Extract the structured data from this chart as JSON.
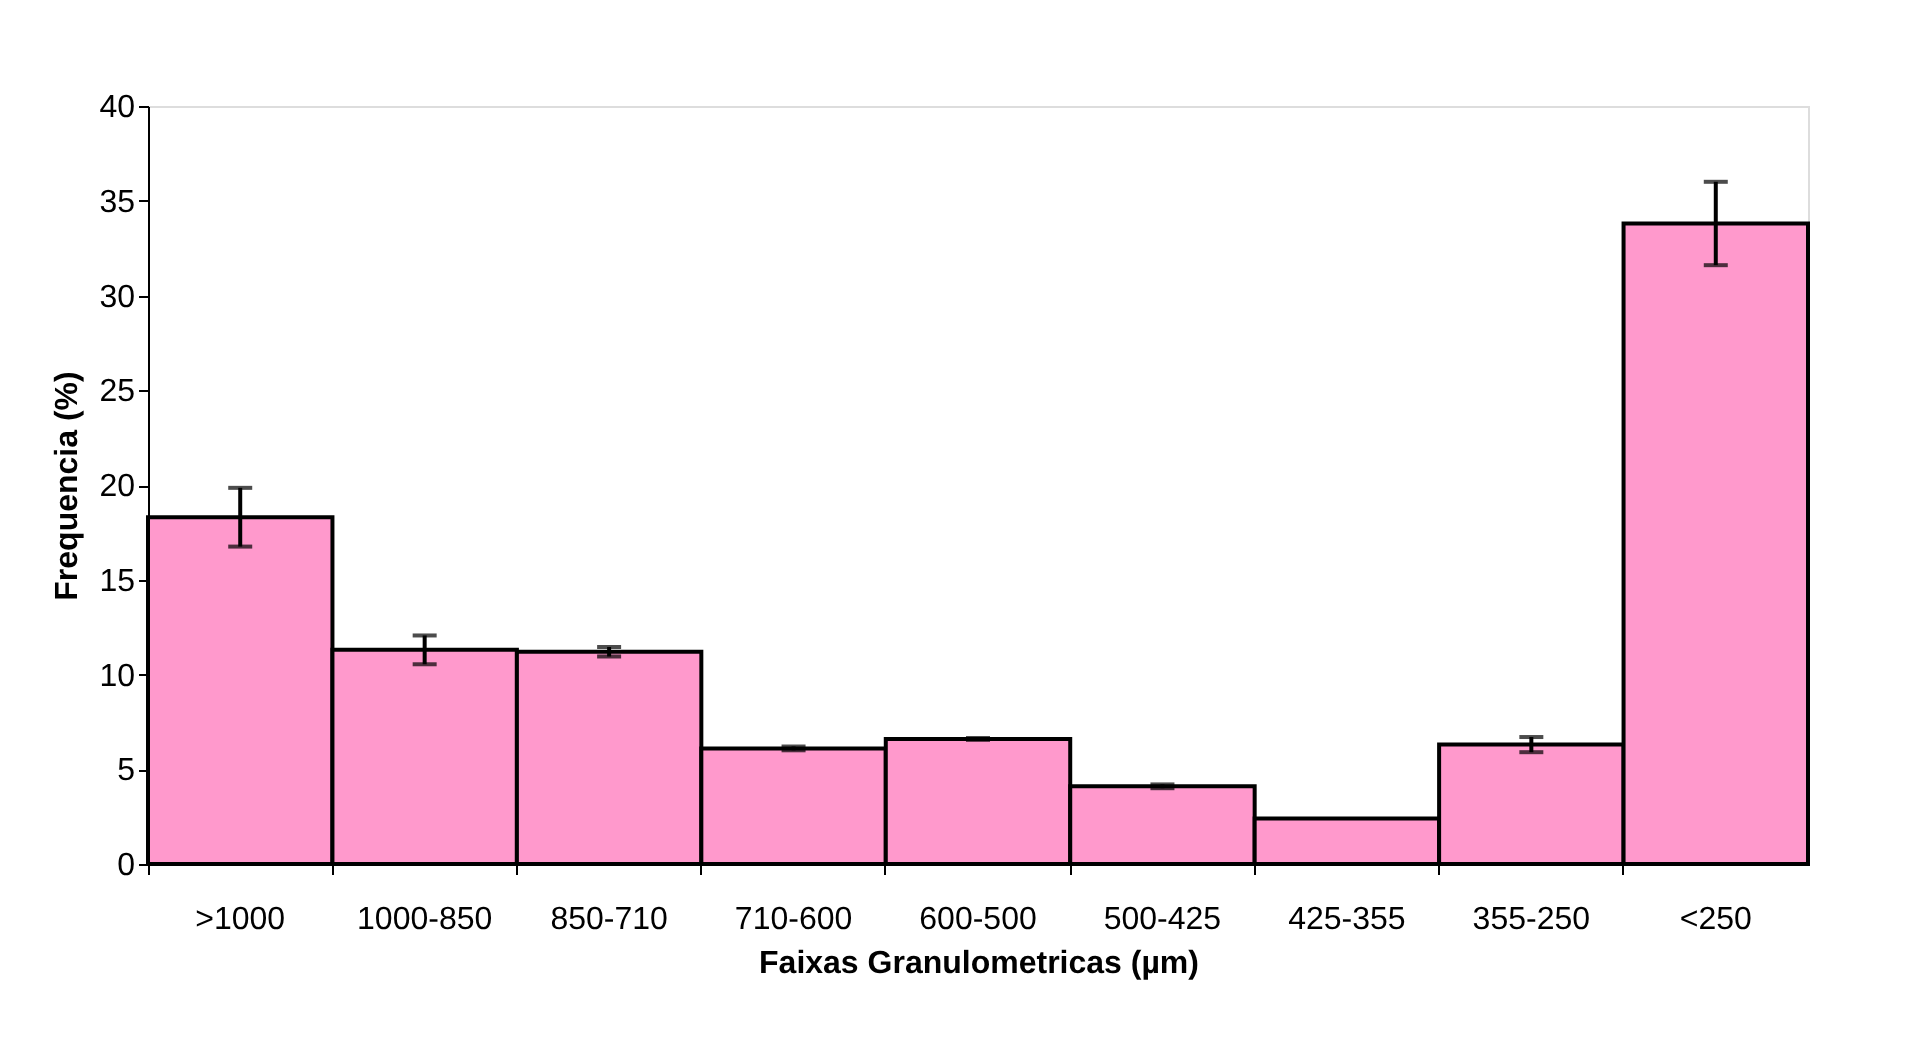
{
  "chart_data": {
    "type": "bar",
    "xlabel": "Faixas Granulometricas (µm)",
    "ylabel": "Frequencia (%)",
    "categories": [
      ">1000",
      "1000-850",
      "850-710",
      "710-600",
      "600-500",
      "500-425",
      "425-355",
      "355-250",
      "<250"
    ],
    "values": [
      18.3,
      11.3,
      11.2,
      6.1,
      6.6,
      4.1,
      2.4,
      6.3,
      33.8
    ],
    "errors": [
      1.55,
      0.76,
      0.25,
      0.1,
      0.05,
      0.1,
      null,
      0.4,
      2.2
    ],
    "color": "#ff99cc",
    "ylim": [
      0,
      40
    ],
    "yticks": [
      0,
      5,
      10,
      15,
      20,
      25,
      30,
      35,
      40
    ],
    "grid": false
  }
}
